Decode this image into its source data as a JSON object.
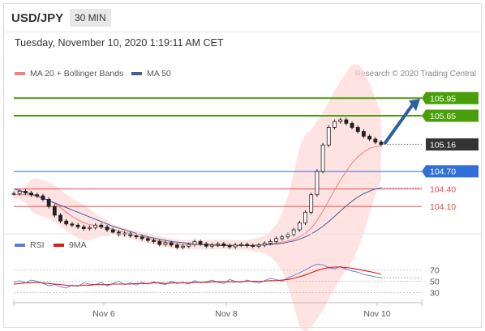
{
  "header": {
    "symbol": "USD/JPY",
    "timeframe": "30 MIN"
  },
  "timestamp": "Tuesday, November 10, 2020 1:19:11 AM CET",
  "credit": "Research © 2020 Trading Central",
  "colors": {
    "resistance": "#4a9e0a",
    "pivot": "#2f6fd6",
    "support": "#e04a4a",
    "current": "#333333",
    "ma20": "#f08080",
    "ma50": "#3f5f9a",
    "band_fill": "#ffd6d6",
    "rsi": "#5a7de0",
    "rsi_ma": "#dd1a1a"
  },
  "chart_data": [
    {
      "type": "candlestick",
      "legend": [
        "MA 20 + Bollinger Bands",
        "MA 50"
      ],
      "x_ticks": [
        "Nov 6",
        "Nov 8",
        "Nov 10"
      ],
      "ylim": [
        103.7,
        106.3
      ],
      "levels": [
        {
          "value": 105.95,
          "label": "105.95",
          "kind": "resistance"
        },
        {
          "value": 105.65,
          "label": "105.65",
          "kind": "resistance"
        },
        {
          "value": 105.16,
          "label": "105.16",
          "kind": "current"
        },
        {
          "value": 104.7,
          "label": "104.70",
          "kind": "pivot"
        },
        {
          "value": 104.4,
          "label": "104.40",
          "kind": "support"
        },
        {
          "value": 104.1,
          "label": "104.10",
          "kind": "support"
        }
      ],
      "close_series": [
        104.32,
        104.36,
        104.33,
        104.3,
        104.28,
        104.22,
        104.1,
        103.95,
        103.85,
        103.8,
        103.78,
        103.75,
        103.72,
        103.74,
        103.78,
        103.75,
        103.7,
        103.66,
        103.62,
        103.64,
        103.6,
        103.58,
        103.55,
        103.52,
        103.5,
        103.45,
        103.48,
        103.44,
        103.4,
        103.42,
        103.45,
        103.5,
        103.46,
        103.42,
        103.44,
        103.46,
        103.43,
        103.41,
        103.44,
        103.45,
        103.43,
        103.42,
        103.44,
        103.47,
        103.5,
        103.55,
        103.58,
        103.62,
        103.7,
        103.82,
        104.0,
        104.3,
        104.7,
        105.15,
        105.45,
        105.55,
        105.58,
        105.52,
        105.45,
        105.38,
        105.3,
        105.25,
        105.2,
        105.16
      ],
      "ma20_series": [
        104.3,
        104.3,
        104.3,
        104.29,
        104.27,
        104.24,
        104.2,
        104.15,
        104.08,
        104.0,
        103.93,
        103.87,
        103.82,
        103.79,
        103.77,
        103.75,
        103.73,
        103.71,
        103.68,
        103.66,
        103.63,
        103.6,
        103.58,
        103.56,
        103.53,
        103.51,
        103.49,
        103.47,
        103.46,
        103.45,
        103.45,
        103.45,
        103.45,
        103.45,
        103.45,
        103.45,
        103.45,
        103.45,
        103.44,
        103.44,
        103.44,
        103.44,
        103.44,
        103.45,
        103.46,
        103.47,
        103.49,
        103.51,
        103.54,
        103.58,
        103.64,
        103.73,
        103.86,
        104.02,
        104.2,
        104.38,
        104.55,
        104.7,
        104.84,
        104.95,
        105.03,
        105.09,
        105.12,
        105.14
      ],
      "ma50_series": [
        104.4,
        104.37,
        104.34,
        104.31,
        104.28,
        104.24,
        104.2,
        104.16,
        104.12,
        104.08,
        104.04,
        104.0,
        103.96,
        103.92,
        103.88,
        103.84,
        103.8,
        103.76,
        103.73,
        103.7,
        103.67,
        103.64,
        103.61,
        103.58,
        103.56,
        103.54,
        103.52,
        103.5,
        103.49,
        103.48,
        103.47,
        103.46,
        103.45,
        103.44,
        103.44,
        103.43,
        103.43,
        103.43,
        103.43,
        103.43,
        103.43,
        103.43,
        103.44,
        103.44,
        103.45,
        103.46,
        103.47,
        103.49,
        103.51,
        103.54,
        103.58,
        103.63,
        103.69,
        103.76,
        103.84,
        103.93,
        104.02,
        104.11,
        104.19,
        104.26,
        104.32,
        104.36,
        104.4,
        104.42
      ]
    },
    {
      "type": "line",
      "legend": [
        "RSI",
        "9MA"
      ],
      "y_ticks": [
        70,
        50,
        30
      ],
      "ylim": [
        15,
        95
      ],
      "rsi_series": [
        48,
        51,
        47,
        52,
        50,
        46,
        42,
        44,
        40,
        38,
        43,
        41,
        47,
        45,
        44,
        48,
        42,
        46,
        50,
        44,
        47,
        43,
        48,
        45,
        49,
        46,
        44,
        50,
        46,
        48,
        45,
        51,
        47,
        49,
        52,
        48,
        46,
        53,
        50,
        48,
        52,
        49,
        47,
        51,
        55,
        53,
        50,
        56,
        60,
        65,
        70,
        76,
        80,
        79,
        74,
        72,
        76,
        71,
        68,
        66,
        62,
        60,
        58,
        56
      ],
      "ma_series": [
        45,
        46,
        47,
        47,
        48,
        47,
        46,
        45,
        44,
        43,
        42,
        42,
        43,
        43,
        44,
        44,
        44,
        45,
        45,
        45,
        45,
        46,
        46,
        46,
        47,
        47,
        46,
        47,
        47,
        47,
        47,
        48,
        48,
        48,
        49,
        49,
        49,
        49,
        49,
        49,
        50,
        50,
        50,
        50,
        51,
        51,
        52,
        53,
        55,
        58,
        61,
        65,
        69,
        72,
        74,
        75,
        75,
        74,
        73,
        71,
        69,
        67,
        65,
        62
      ]
    }
  ]
}
